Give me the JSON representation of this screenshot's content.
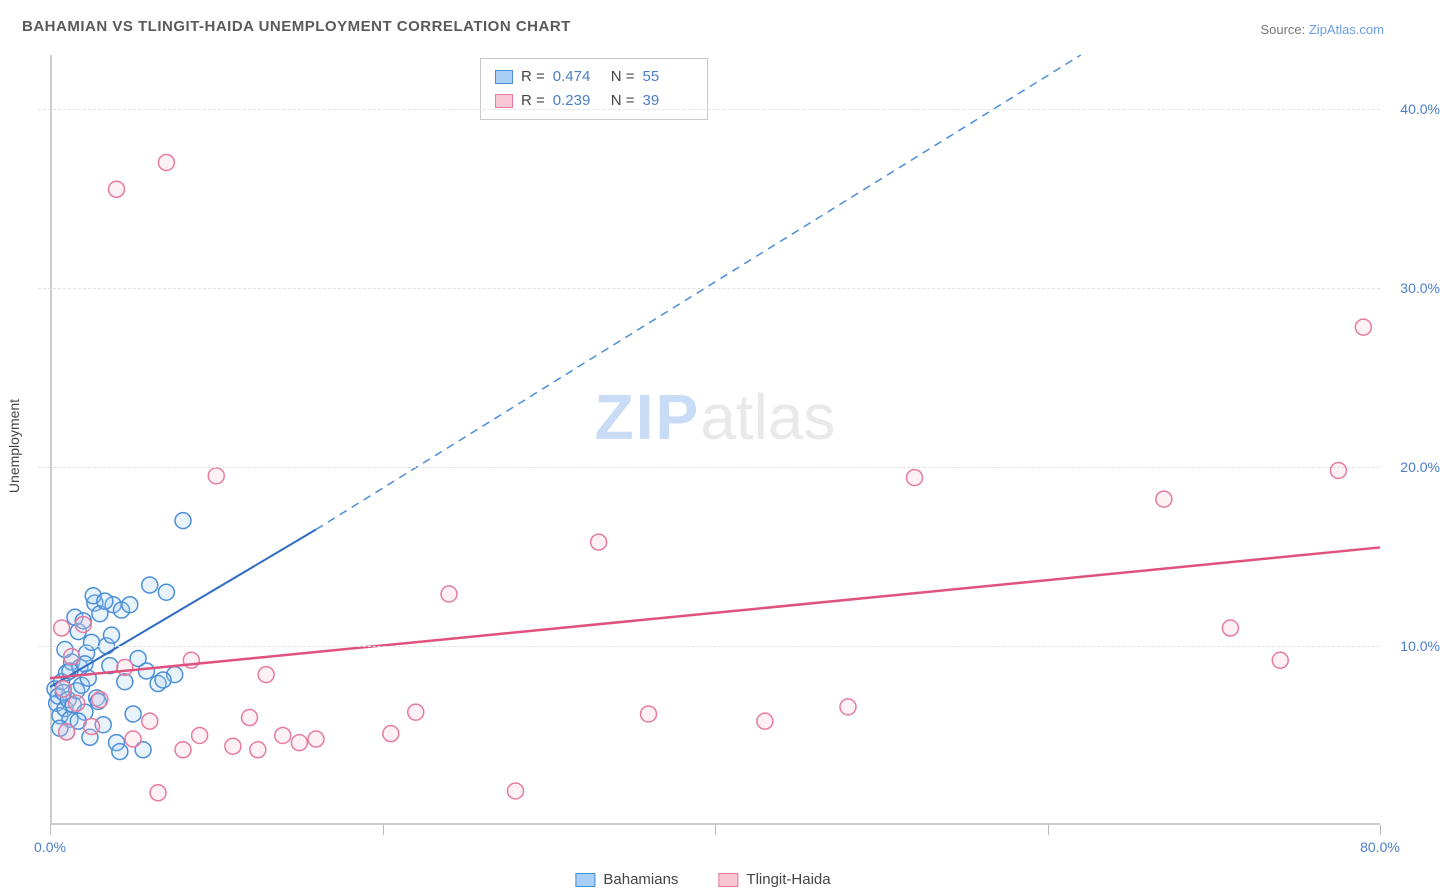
{
  "title": "BAHAMIAN VS TLINGIT-HAIDA UNEMPLOYMENT CORRELATION CHART",
  "source_prefix": "Source: ",
  "source_link": "ZipAtlas.com",
  "ylabel": "Unemployment",
  "watermark_zip": "ZIP",
  "watermark_atlas": "atlas",
  "chart": {
    "type": "scatter",
    "xlim": [
      0,
      80
    ],
    "ylim": [
      0,
      43
    ],
    "x_ticks_major": [
      0,
      20,
      40,
      60,
      80
    ],
    "x_tick_labels": {
      "0": "0.0%",
      "80": "80.0%"
    },
    "y_gridlines": [
      10,
      20,
      30,
      40
    ],
    "y_tick_labels": {
      "10": "10.0%",
      "20": "20.0%",
      "30": "30.0%",
      "40": "40.0%"
    },
    "background_color": "#ffffff",
    "grid_color": "#e2e2e2",
    "axis_color": "#cccccc",
    "marker_radius": 8,
    "marker_opacity": 0.25,
    "series": [
      {
        "name": "Bahamians",
        "color_fill": "#a9cef4",
        "color_stroke": "#4a8fd8",
        "trend": {
          "x1": 0,
          "y1": 7.7,
          "x2": 16,
          "y2": 16.5,
          "solid_color": "#2f6bc2",
          "solid_width": 2,
          "dash_from_x": 16,
          "dash_to_x": 62,
          "dash_to_y": 43,
          "dash_color": "#4a8fd8",
          "dash_width": 1.5,
          "dash_pattern": "8,6"
        },
        "R": "0.474",
        "N": "55",
        "points": [
          [
            0.3,
            7.6
          ],
          [
            0.4,
            6.8
          ],
          [
            0.5,
            7.2
          ],
          [
            0.6,
            6.1
          ],
          [
            0.7,
            8.0
          ],
          [
            0.8,
            7.4
          ],
          [
            0.9,
            6.5
          ],
          [
            1.0,
            8.5
          ],
          [
            1.1,
            7.0
          ],
          [
            1.2,
            5.9
          ],
          [
            1.3,
            9.1
          ],
          [
            1.4,
            6.7
          ],
          [
            1.5,
            11.6
          ],
          [
            1.6,
            7.5
          ],
          [
            1.7,
            10.8
          ],
          [
            1.8,
            8.8
          ],
          [
            1.9,
            7.8
          ],
          [
            2.0,
            11.4
          ],
          [
            2.1,
            6.3
          ],
          [
            2.2,
            9.6
          ],
          [
            2.3,
            8.2
          ],
          [
            2.4,
            4.9
          ],
          [
            2.5,
            10.2
          ],
          [
            2.7,
            12.4
          ],
          [
            2.8,
            7.1
          ],
          [
            3.0,
            11.8
          ],
          [
            3.2,
            5.6
          ],
          [
            3.4,
            10.0
          ],
          [
            3.6,
            8.9
          ],
          [
            3.8,
            12.3
          ],
          [
            4.0,
            4.6
          ],
          [
            4.3,
            12.0
          ],
          [
            4.5,
            8.0
          ],
          [
            4.8,
            12.3
          ],
          [
            5.0,
            6.2
          ],
          [
            5.3,
            9.3
          ],
          [
            5.6,
            4.2
          ],
          [
            6.0,
            13.4
          ],
          [
            6.5,
            7.9
          ],
          [
            7.0,
            13.0
          ],
          [
            7.5,
            8.4
          ],
          [
            8.0,
            17.0
          ],
          [
            4.2,
            4.1
          ],
          [
            2.6,
            12.8
          ],
          [
            3.3,
            12.5
          ],
          [
            1.0,
            5.2
          ],
          [
            0.9,
            9.8
          ],
          [
            0.6,
            5.4
          ],
          [
            1.2,
            8.6
          ],
          [
            1.7,
            5.8
          ],
          [
            2.1,
            9.0
          ],
          [
            2.9,
            6.9
          ],
          [
            3.7,
            10.6
          ],
          [
            5.8,
            8.6
          ],
          [
            6.8,
            8.1
          ]
        ]
      },
      {
        "name": "Tlingit-Haida",
        "color_fill": "#f7c7d5",
        "color_stroke": "#e77aa0",
        "trend": {
          "x1": 0,
          "y1": 8.2,
          "x2": 80,
          "y2": 15.5,
          "solid_color": "#e0527e",
          "solid_width": 2.5
        },
        "R": "0.239",
        "N": "39",
        "points": [
          [
            0.7,
            11.0
          ],
          [
            0.8,
            7.6
          ],
          [
            1.0,
            5.2
          ],
          [
            1.3,
            9.4
          ],
          [
            1.6,
            6.8
          ],
          [
            2.0,
            11.2
          ],
          [
            2.5,
            5.5
          ],
          [
            3.0,
            7.0
          ],
          [
            4.0,
            35.5
          ],
          [
            4.5,
            8.8
          ],
          [
            5.0,
            4.8
          ],
          [
            6.0,
            5.8
          ],
          [
            6.5,
            1.8
          ],
          [
            7.0,
            37.0
          ],
          [
            8.0,
            4.2
          ],
          [
            8.5,
            9.2
          ],
          [
            9.0,
            5.0
          ],
          [
            10.0,
            19.5
          ],
          [
            11.0,
            4.4
          ],
          [
            12.0,
            6.0
          ],
          [
            12.5,
            4.2
          ],
          [
            13.0,
            8.4
          ],
          [
            14.0,
            5.0
          ],
          [
            15.0,
            4.6
          ],
          [
            16.0,
            4.8
          ],
          [
            20.5,
            5.1
          ],
          [
            22.0,
            6.3
          ],
          [
            24.0,
            12.9
          ],
          [
            28.0,
            1.9
          ],
          [
            33.0,
            15.8
          ],
          [
            36.0,
            6.2
          ],
          [
            43.0,
            5.8
          ],
          [
            48.0,
            6.6
          ],
          [
            52.0,
            19.4
          ],
          [
            67.0,
            18.2
          ],
          [
            71.0,
            11.0
          ],
          [
            74.0,
            9.2
          ],
          [
            77.5,
            19.8
          ],
          [
            79.0,
            27.8
          ]
        ]
      }
    ]
  },
  "statbox_labels": {
    "R": "R =",
    "N": "N ="
  },
  "legend_bottom": [
    "Bahamians",
    "Tlingit-Haida"
  ]
}
